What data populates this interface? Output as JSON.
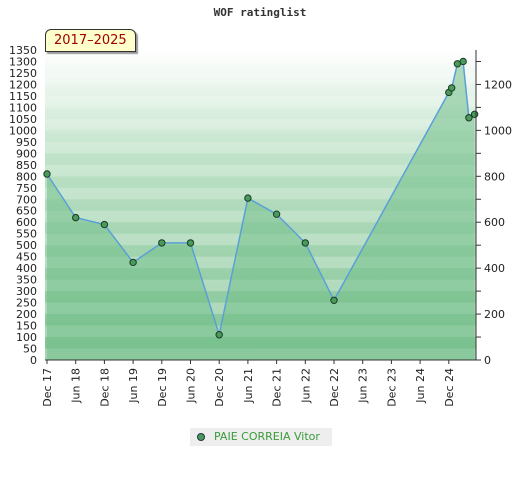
{
  "chart_data": {
    "type": "area",
    "title": "WOF ratinglist",
    "date_range_label": "2017–2025",
    "left_yticks": [
      1350,
      1300,
      1250,
      1200,
      1150,
      1100,
      1050,
      1000,
      950,
      900,
      850,
      800,
      750,
      700,
      650,
      600,
      550,
      500,
      450,
      400,
      350,
      300,
      250,
      200,
      150,
      100,
      50,
      0
    ],
    "right_yticks": [
      1200,
      1000,
      800,
      600,
      400,
      200,
      0
    ],
    "ylim": [
      0,
      1350
    ],
    "x_tick_labels": [
      "Dec 17",
      "Jun 18",
      "Dec 18",
      "Jun 19",
      "Dec 19",
      "Jun 20",
      "Dec 20",
      "Jun 21",
      "Dec 21",
      "Jun 22",
      "Dec 22",
      "Jun 23",
      "Dec 23",
      "Jun 24",
      "Dec 24"
    ],
    "series": [
      {
        "name": "PAIE CORREIA Vitor",
        "color": "#5aa0d8",
        "fill": "#72c08a",
        "marker_color": "#4a9a5a",
        "points": [
          {
            "t": 0.0,
            "y": 810
          },
          {
            "t": 1.0,
            "y": 620
          },
          {
            "t": 2.0,
            "y": 590
          },
          {
            "t": 3.0,
            "y": 425
          },
          {
            "t": 4.0,
            "y": 510
          },
          {
            "t": 5.0,
            "y": 510
          },
          {
            "t": 6.0,
            "y": 110
          },
          {
            "t": 7.0,
            "y": 705
          },
          {
            "t": 8.0,
            "y": 635
          },
          {
            "t": 9.0,
            "y": 510
          },
          {
            "t": 10.0,
            "y": 260
          },
          {
            "t": 14.0,
            "y": 1165
          },
          {
            "t": 14.1,
            "y": 1185
          },
          {
            "t": 14.3,
            "y": 1290
          },
          {
            "t": 14.5,
            "y": 1300
          },
          {
            "t": 14.7,
            "y": 1055
          },
          {
            "t": 14.9,
            "y": 1070
          }
        ]
      }
    ],
    "legend": {
      "position": "bottom-center",
      "label": "PAIE CORREIA Vitor"
    },
    "background_bands": [
      "#ffffff",
      "#7ec291"
    ]
  }
}
